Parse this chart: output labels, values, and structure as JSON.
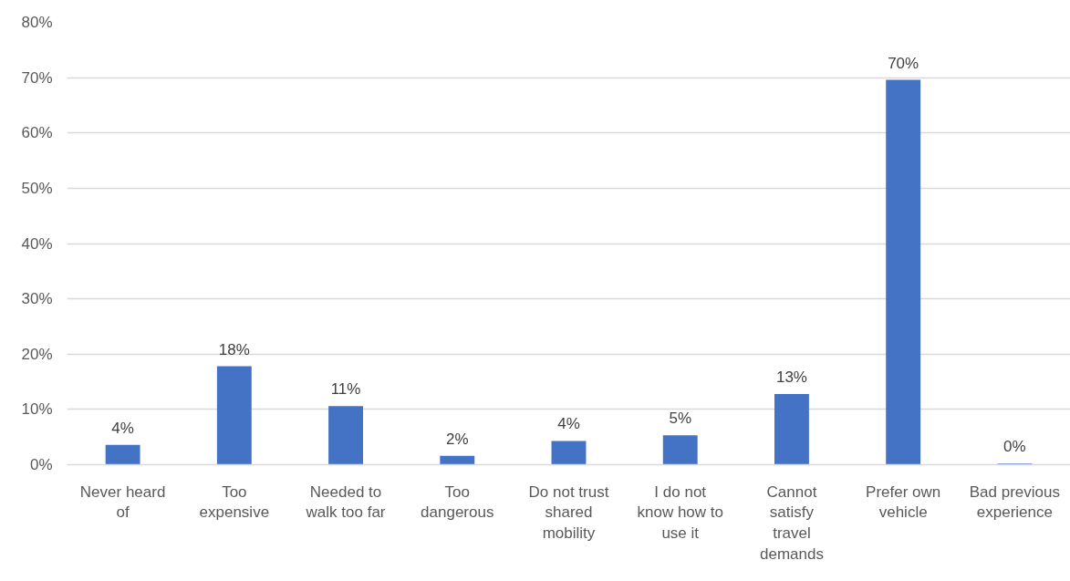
{
  "chart_data": {
    "type": "bar",
    "categories": [
      "Never heard of",
      "Too expensive",
      "Needed to walk too far",
      "Too dangerous",
      "Do not trust shared mobility",
      "I do not know how to use it",
      "Cannot satisfy travel demands",
      "Prefer own vehicle",
      "Bad previous experience"
    ],
    "values": [
      3.6,
      17.8,
      10.6,
      1.6,
      4.3,
      5.3,
      12.8,
      69.6,
      0.2
    ],
    "value_labels": [
      "4%",
      "18%",
      "11%",
      "2%",
      "4%",
      "5%",
      "13%",
      "70%",
      "0%"
    ],
    "color": "#4472c4",
    "ylim": [
      0,
      80
    ],
    "yticks": [
      {
        "value": 0,
        "label": "0%"
      },
      {
        "value": 10,
        "label": "10%"
      },
      {
        "value": 20,
        "label": "20%"
      },
      {
        "value": 30,
        "label": "30%"
      },
      {
        "value": 40,
        "label": "40%"
      },
      {
        "value": 50,
        "label": "50%"
      },
      {
        "value": 60,
        "label": "60%"
      },
      {
        "value": 70,
        "label": "70%"
      },
      {
        "value": 80,
        "label": "80%"
      }
    ],
    "grid": "y"
  }
}
